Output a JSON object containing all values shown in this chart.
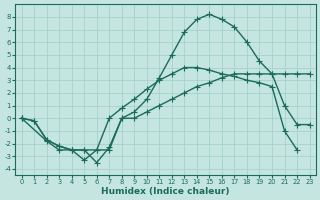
{
  "xlabel": "Humidex (Indice chaleur)",
  "bg_color": "#c5e6e0",
  "line_color": "#1a6b5a",
  "grid_color": "#9fcec5",
  "xlim": [
    -0.5,
    23.5
  ],
  "ylim": [
    -4.5,
    9.0
  ],
  "xticks": [
    0,
    1,
    2,
    3,
    4,
    5,
    6,
    7,
    8,
    9,
    10,
    11,
    12,
    13,
    14,
    15,
    16,
    17,
    18,
    19,
    20,
    21,
    22,
    23
  ],
  "yticks": [
    -4,
    -3,
    -2,
    -1,
    0,
    1,
    2,
    3,
    4,
    5,
    6,
    7,
    8
  ],
  "curve1_x": [
    0,
    1,
    2,
    3,
    4,
    5,
    6,
    7,
    8,
    9,
    10,
    11,
    12,
    13,
    14,
    15,
    16,
    17,
    18,
    19,
    20,
    21,
    22,
    23
  ],
  "curve1_y": [
    0.0,
    -0.2,
    -1.7,
    -2.2,
    -2.5,
    -2.5,
    -3.5,
    -2.3,
    0.0,
    0.0,
    0.5,
    1.0,
    1.5,
    2.0,
    2.5,
    2.8,
    3.2,
    3.5,
    3.5,
    3.5,
    3.5,
    3.5,
    3.5,
    3.5
  ],
  "curve2_x": [
    0,
    1,
    2,
    3,
    4,
    5,
    6,
    7,
    8,
    9,
    10,
    11,
    12,
    13,
    14,
    15,
    16,
    17,
    18,
    19,
    20,
    21,
    22,
    23
  ],
  "curve2_y": [
    0.0,
    -0.2,
    -1.7,
    -2.2,
    -2.5,
    -2.5,
    -2.5,
    -2.5,
    0.0,
    0.5,
    1.5,
    3.2,
    5.0,
    6.8,
    7.8,
    8.2,
    7.8,
    7.2,
    6.0,
    4.5,
    3.5,
    1.0,
    -0.5,
    -0.5
  ],
  "curve3_x": [
    0,
    2,
    3,
    4,
    5,
    6,
    7,
    8,
    9,
    10,
    11,
    12,
    13,
    14,
    15,
    16,
    17,
    18,
    19,
    20,
    21,
    22
  ],
  "curve3_y": [
    0.0,
    -1.8,
    -2.5,
    -2.5,
    -3.3,
    -2.5,
    0.0,
    0.8,
    1.5,
    2.3,
    3.0,
    3.5,
    4.0,
    4.0,
    3.8,
    3.5,
    3.3,
    3.0,
    2.8,
    2.5,
    -1.0,
    -2.5
  ],
  "linewidth": 1.0,
  "markersize": 4
}
